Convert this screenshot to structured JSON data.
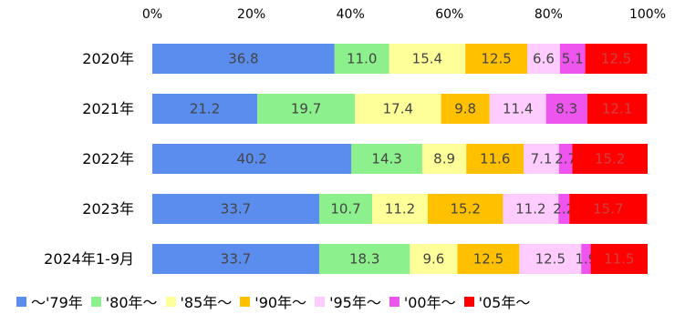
{
  "chart_data": {
    "type": "bar",
    "orientation": "horizontal",
    "stacked": true,
    "percent_scale": true,
    "xlim": [
      0,
      100
    ],
    "x_ticks": [
      "0%",
      "20%",
      "40%",
      "60%",
      "80%",
      "100%"
    ],
    "x_tick_values": [
      0,
      20,
      40,
      60,
      80,
      100
    ],
    "x_axis_position": "top",
    "grid": false,
    "legend_position": "bottom",
    "categories": [
      "2020年",
      "2021年",
      "2022年",
      "2023年",
      "2024年1-9月"
    ],
    "series": [
      {
        "name": "～'79年",
        "color": "#5B8DEF",
        "label_color": "#444444",
        "values": [
          36.8,
          21.2,
          40.2,
          33.7,
          33.7
        ]
      },
      {
        "name": "'80年～",
        "color": "#8CF08C",
        "label_color": "#444444",
        "values": [
          11.0,
          19.7,
          14.3,
          10.7,
          18.3
        ]
      },
      {
        "name": "'85年～",
        "color": "#FFFF99",
        "label_color": "#444444",
        "values": [
          15.4,
          17.4,
          8.9,
          11.2,
          9.6
        ]
      },
      {
        "name": "'90年～",
        "color": "#FFC000",
        "label_color": "#444444",
        "values": [
          12.5,
          9.8,
          11.6,
          15.2,
          12.5
        ]
      },
      {
        "name": "'95年～",
        "color": "#FFCCFF",
        "label_color": "#444444",
        "values": [
          6.6,
          11.4,
          7.1,
          11.2,
          12.5
        ]
      },
      {
        "name": "'00年～",
        "color": "#EE55EE",
        "label_color": "#444444",
        "values": [
          5.1,
          8.3,
          2.7,
          2.2,
          1.9
        ]
      },
      {
        "name": "'05年～",
        "color": "#FF0000",
        "label_color": "#D04040",
        "values": [
          12.5,
          12.1,
          15.2,
          15.7,
          11.5
        ]
      }
    ]
  }
}
